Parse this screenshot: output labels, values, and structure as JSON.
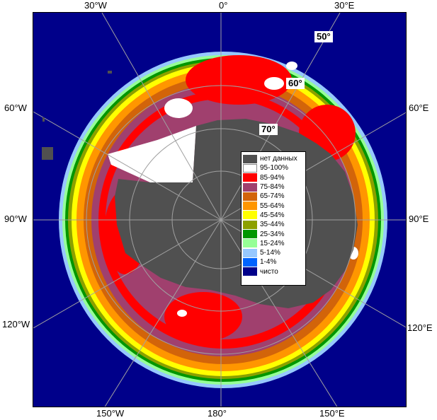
{
  "longitude_labels": {
    "top": [
      "30°W",
      "0°",
      "30°E"
    ],
    "bottom": [
      "150°W",
      "180°",
      "150°E"
    ],
    "left": [
      "60°W",
      "90°W",
      "120°W"
    ],
    "right": [
      "60°E",
      "90°E",
      "120°E"
    ]
  },
  "latitude_labels": [
    "50°",
    "60°",
    "70°"
  ],
  "legend": {
    "items": [
      {
        "label": "нет данных",
        "color": "#505050"
      },
      {
        "label": "95-100%",
        "color": "#ffffff"
      },
      {
        "label": "85-94%",
        "color": "#ff0000"
      },
      {
        "label": "75-84%",
        "color": "#a0406e"
      },
      {
        "label": "65-74%",
        "color": "#d2640a"
      },
      {
        "label": "55-64%",
        "color": "#ff9600"
      },
      {
        "label": "45-54%",
        "color": "#ffff00"
      },
      {
        "label": "35-44%",
        "color": "#8ca000"
      },
      {
        "label": "25-34%",
        "color": "#009600"
      },
      {
        "label": "15-24%",
        "color": "#96ff96"
      },
      {
        "label": "5-14%",
        "color": "#96c8ff"
      },
      {
        "label": "1-4%",
        "color": "#0064ff"
      },
      {
        "label": "чисто",
        "color": "#00008a"
      }
    ]
  },
  "colors": {
    "ocean": "#00008a",
    "land": "#505050",
    "grid": "#a0a0a0"
  }
}
